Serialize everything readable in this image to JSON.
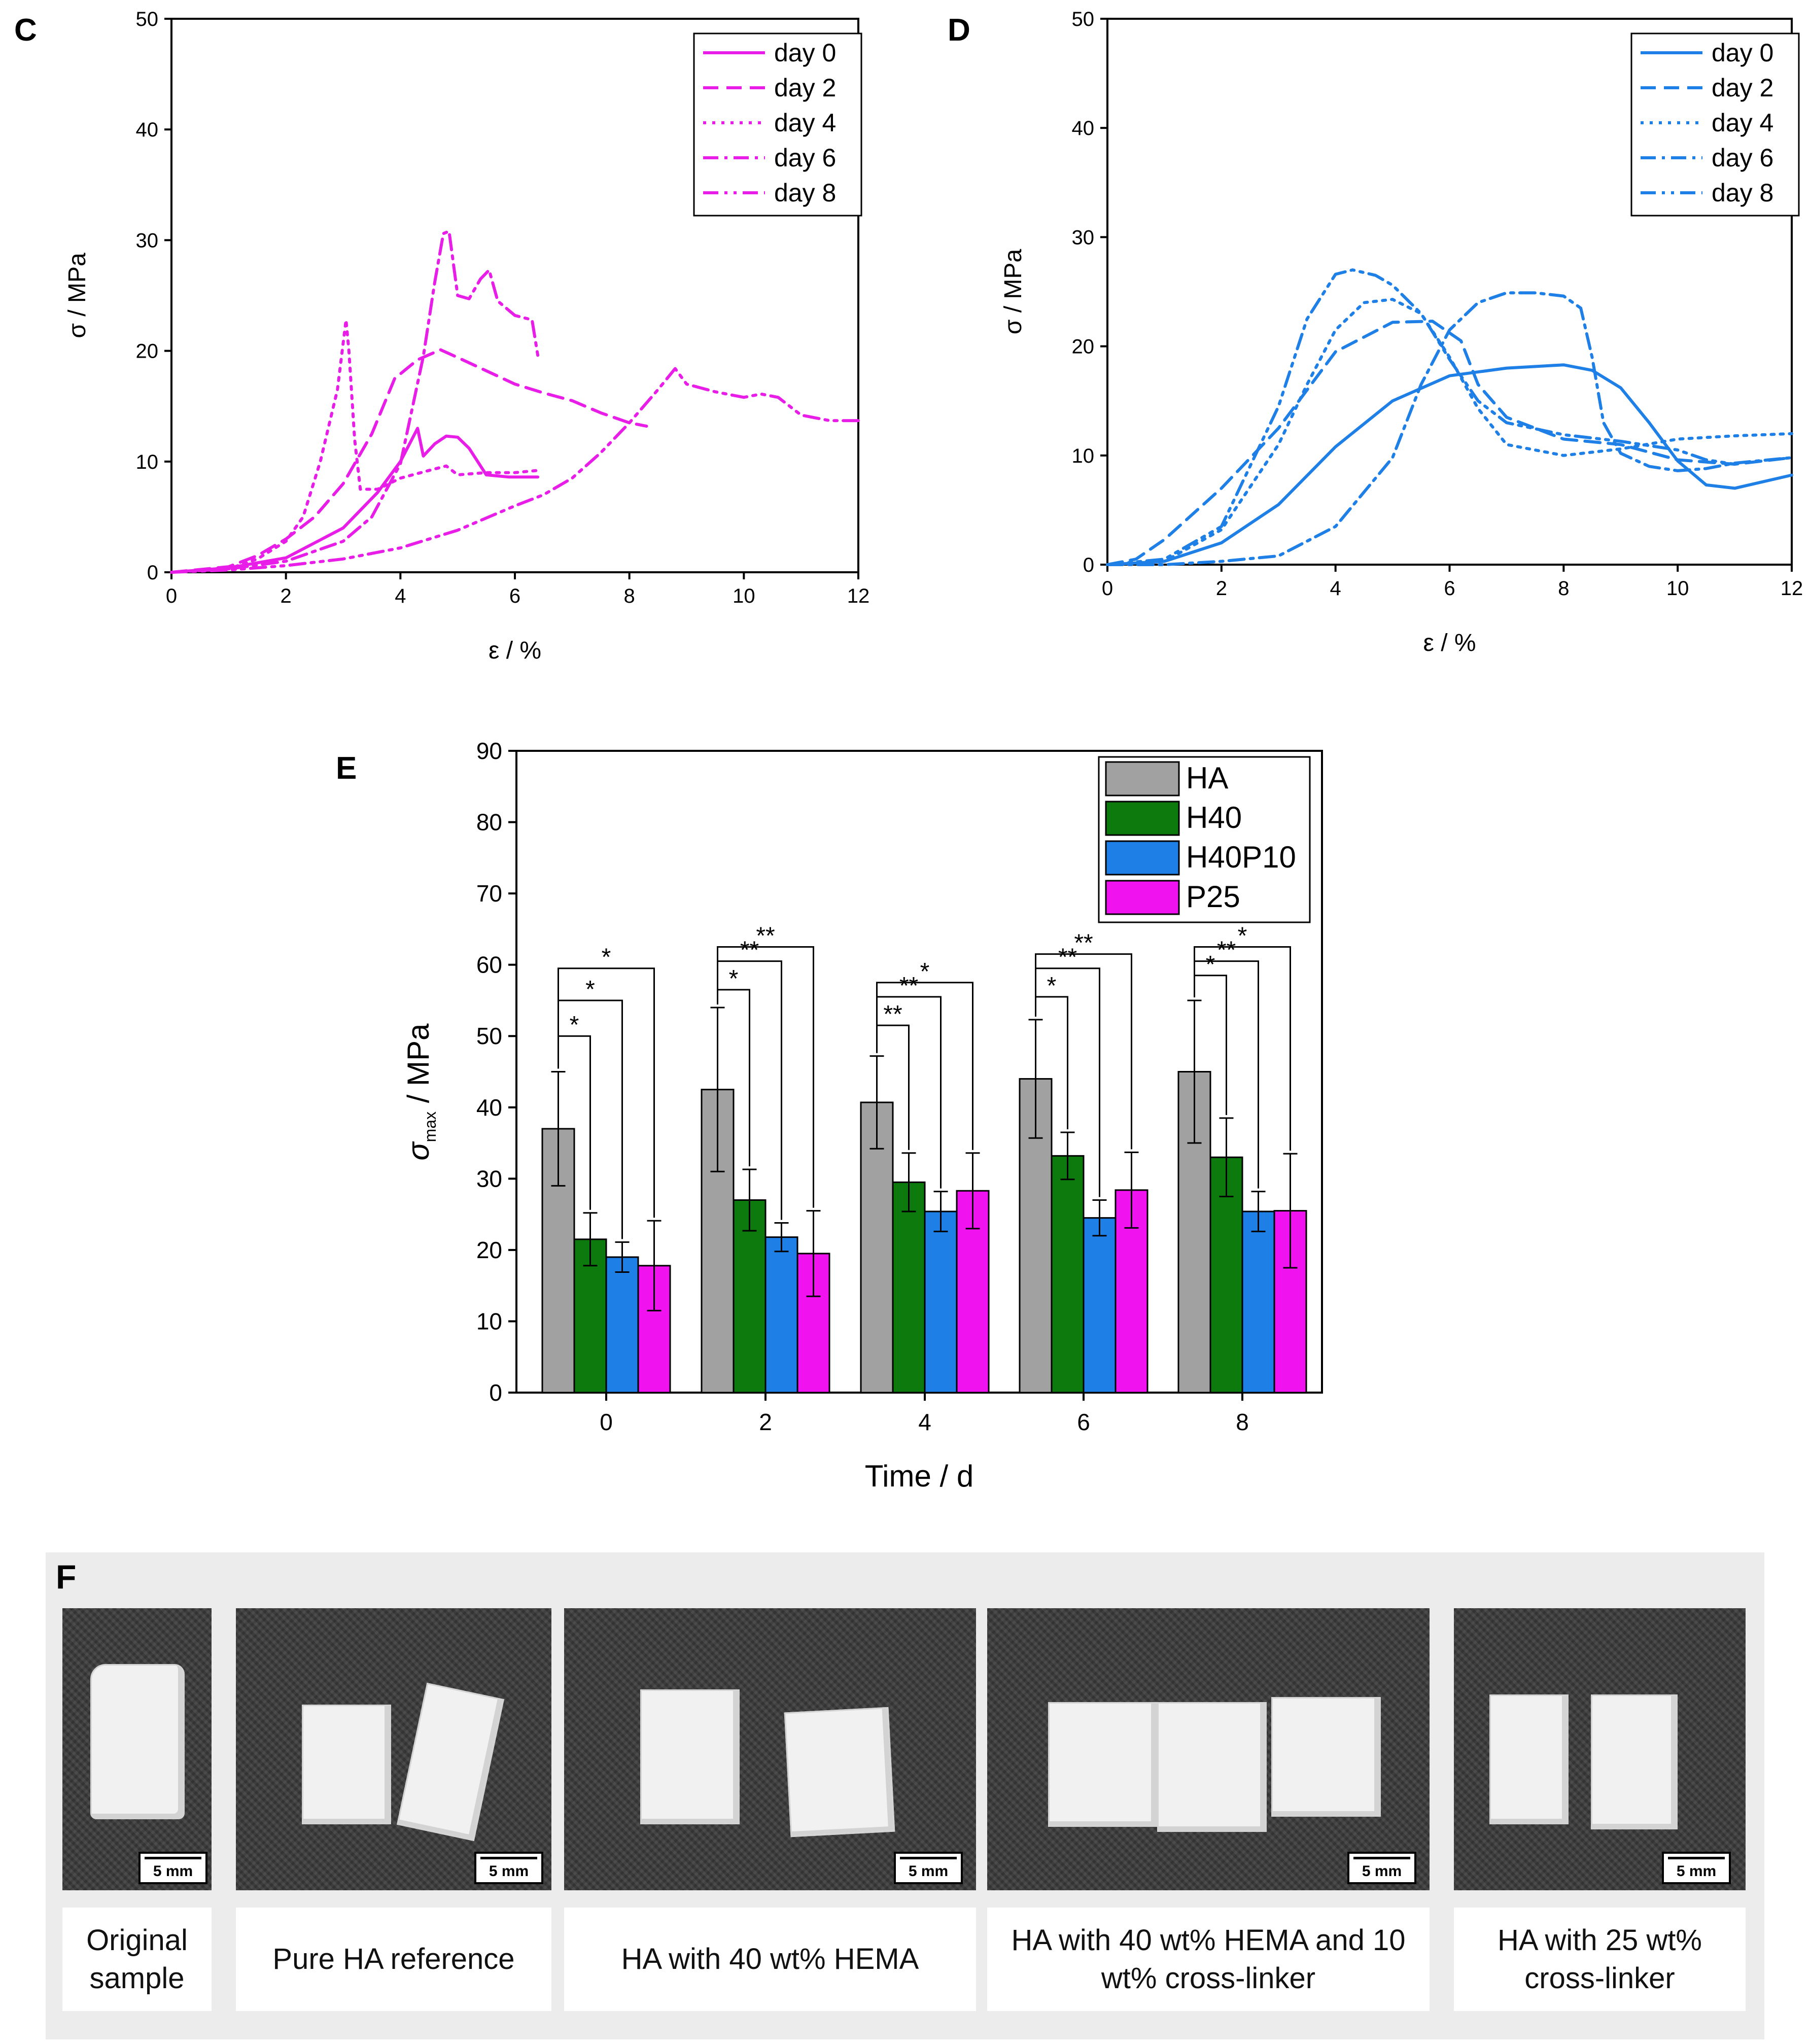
{
  "chart_data": [
    {
      "id": "C",
      "type": "line",
      "panel_label": "C",
      "xlabel": "ε / %",
      "ylabel": "σ / MPa",
      "xlim": [
        0,
        12
      ],
      "ylim": [
        0,
        50
      ],
      "xticks": [
        "0",
        "2",
        "4",
        "6",
        "8",
        "10",
        "12"
      ],
      "yticks": [
        "0",
        "10",
        "20",
        "30",
        "40",
        "50"
      ],
      "color": "#e81ee8",
      "legend": [
        "day 0",
        "day 2",
        "day 4",
        "day 6",
        "day 8"
      ],
      "series": [
        {
          "name": "day 0",
          "dash": "solid",
          "points": [
            [
              0,
              0
            ],
            [
              1,
              0.4
            ],
            [
              2,
              1.3
            ],
            [
              3,
              4
            ],
            [
              3.6,
              7.2
            ],
            [
              4,
              10
            ],
            [
              4.3,
              13
            ],
            [
              4.4,
              10.5
            ],
            [
              4.6,
              11.6
            ],
            [
              4.8,
              12.3
            ],
            [
              5,
              12.2
            ],
            [
              5.2,
              11.2
            ],
            [
              5.5,
              8.8
            ],
            [
              5.9,
              8.6
            ],
            [
              6.4,
              8.6
            ]
          ]
        },
        {
          "name": "day 2",
          "dash": "dashed",
          "points": [
            [
              0,
              0
            ],
            [
              1,
              0.5
            ],
            [
              1.5,
              1.5
            ],
            [
              2,
              3
            ],
            [
              2.5,
              5
            ],
            [
              3,
              8
            ],
            [
              3.5,
              12.5
            ],
            [
              3.9,
              17.5
            ],
            [
              4.3,
              19.2
            ],
            [
              4.7,
              20.1
            ],
            [
              5,
              19.4
            ],
            [
              5.5,
              18.2
            ],
            [
              6,
              17
            ],
            [
              6.5,
              16.2
            ],
            [
              7,
              15.5
            ],
            [
              7.5,
              14.4
            ],
            [
              8,
              13.5
            ],
            [
              8.3,
              13.2
            ]
          ]
        },
        {
          "name": "day 4",
          "dash": "dotted",
          "points": [
            [
              0,
              0
            ],
            [
              1,
              0.3
            ],
            [
              1.5,
              1.2
            ],
            [
              2,
              2.8
            ],
            [
              2.3,
              5
            ],
            [
              2.6,
              10
            ],
            [
              2.9,
              16.5
            ],
            [
              3.05,
              22.8
            ],
            [
              3.1,
              20
            ],
            [
              3.2,
              12
            ],
            [
              3.3,
              7.5
            ],
            [
              3.6,
              7.5
            ],
            [
              4,
              8.5
            ],
            [
              4.5,
              9.2
            ],
            [
              4.8,
              9.6
            ],
            [
              5,
              8.8
            ],
            [
              5.5,
              9
            ],
            [
              6,
              9
            ],
            [
              6.4,
              9.2
            ]
          ]
        },
        {
          "name": "day 6",
          "dash": "dashdot",
          "points": [
            [
              0,
              0
            ],
            [
              1,
              0.3
            ],
            [
              2,
              1
            ],
            [
              3,
              2.8
            ],
            [
              3.5,
              5
            ],
            [
              4,
              9.8
            ],
            [
              4.4,
              19.5
            ],
            [
              4.6,
              26.2
            ],
            [
              4.75,
              30.6
            ],
            [
              4.85,
              30.8
            ],
            [
              5,
              25
            ],
            [
              5.2,
              24.7
            ],
            [
              5.4,
              26.5
            ],
            [
              5.55,
              27.3
            ],
            [
              5.7,
              24.5
            ],
            [
              6,
              23.2
            ],
            [
              6.3,
              22.8
            ],
            [
              6.4,
              19.6
            ]
          ]
        },
        {
          "name": "day 8",
          "dash": "dashdotdot",
          "points": [
            [
              0,
              0
            ],
            [
              1,
              0.2
            ],
            [
              2,
              0.6
            ],
            [
              3,
              1.2
            ],
            [
              4,
              2.2
            ],
            [
              5,
              3.8
            ],
            [
              6,
              6
            ],
            [
              6.5,
              7
            ],
            [
              7,
              8.5
            ],
            [
              7.5,
              10.8
            ],
            [
              8,
              13.5
            ],
            [
              8.5,
              16.5
            ],
            [
              8.8,
              18.4
            ],
            [
              9,
              17
            ],
            [
              9.5,
              16.3
            ],
            [
              10,
              15.8
            ],
            [
              10.3,
              16.1
            ],
            [
              10.6,
              15.8
            ],
            [
              11,
              14.2
            ],
            [
              11.5,
              13.7
            ],
            [
              12,
              13.7
            ]
          ]
        }
      ]
    },
    {
      "id": "D",
      "type": "line",
      "panel_label": "D",
      "xlabel": "ε / %",
      "ylabel": "σ / MPa",
      "xlim": [
        0,
        12
      ],
      "ylim": [
        0,
        50
      ],
      "xticks": [
        "0",
        "2",
        "4",
        "6",
        "8",
        "10",
        "12"
      ],
      "yticks": [
        "0",
        "10",
        "20",
        "30",
        "40",
        "50"
      ],
      "color": "#1e7fe6",
      "legend": [
        "day 0",
        "day 2",
        "day 4",
        "day 6",
        "day 8"
      ],
      "series": [
        {
          "name": "day 0",
          "dash": "solid",
          "points": [
            [
              0,
              0
            ],
            [
              1,
              0.3
            ],
            [
              2,
              2
            ],
            [
              3,
              5.5
            ],
            [
              4,
              10.8
            ],
            [
              5,
              15
            ],
            [
              6,
              17.3
            ],
            [
              7,
              18
            ],
            [
              8,
              18.3
            ],
            [
              8.5,
              17.8
            ],
            [
              9,
              16.2
            ],
            [
              9.5,
              13
            ],
            [
              10,
              9.5
            ],
            [
              10.5,
              7.3
            ],
            [
              11,
              7
            ],
            [
              12,
              8.2
            ]
          ]
        },
        {
          "name": "day 2",
          "dash": "dashed",
          "points": [
            [
              0,
              0
            ],
            [
              0.5,
              0.5
            ],
            [
              1,
              2.3
            ],
            [
              2,
              7
            ],
            [
              3,
              12.5
            ],
            [
              4,
              19.5
            ],
            [
              5,
              22.2
            ],
            [
              5.7,
              22.3
            ],
            [
              6.2,
              20.5
            ],
            [
              6.5,
              16.5
            ],
            [
              7,
              13.5
            ],
            [
              8,
              11.5
            ],
            [
              9,
              11
            ],
            [
              10,
              9.6
            ],
            [
              11,
              9.2
            ],
            [
              12,
              9.8
            ]
          ]
        },
        {
          "name": "day 4",
          "dash": "dotted",
          "points": [
            [
              0,
              0
            ],
            [
              1,
              0.3
            ],
            [
              2,
              3.2
            ],
            [
              3,
              11
            ],
            [
              3.5,
              16.5
            ],
            [
              4,
              21.5
            ],
            [
              4.5,
              24
            ],
            [
              5,
              24.3
            ],
            [
              5.5,
              23
            ],
            [
              6,
              19
            ],
            [
              6.5,
              14.3
            ],
            [
              7,
              11
            ],
            [
              8,
              10
            ],
            [
              9,
              10.6
            ],
            [
              10,
              11.5
            ],
            [
              11,
              11.8
            ],
            [
              12,
              12
            ]
          ]
        },
        {
          "name": "day 6",
          "dash": "dashdot",
          "points": [
            [
              0,
              0
            ],
            [
              1,
              0
            ],
            [
              2,
              0.3
            ],
            [
              3,
              0.8
            ],
            [
              4,
              3.5
            ],
            [
              5,
              9.8
            ],
            [
              5.5,
              16.5
            ],
            [
              6,
              21.5
            ],
            [
              6.5,
              24
            ],
            [
              7,
              24.9
            ],
            [
              7.5,
              24.9
            ],
            [
              8,
              24.6
            ],
            [
              8.3,
              23.5
            ],
            [
              8.5,
              19
            ],
            [
              8.7,
              13
            ],
            [
              9,
              10.2
            ],
            [
              9.5,
              9
            ],
            [
              10,
              8.6
            ],
            [
              10.5,
              8.8
            ],
            [
              11,
              9.3
            ],
            [
              12,
              9.8
            ]
          ]
        },
        {
          "name": "day 8",
          "dash": "dashdotdot",
          "points": [
            [
              0,
              0
            ],
            [
              1,
              0.5
            ],
            [
              2,
              3.5
            ],
            [
              3,
              14.5
            ],
            [
              3.5,
              22.5
            ],
            [
              4,
              26.6
            ],
            [
              4.3,
              27
            ],
            [
              4.7,
              26.5
            ],
            [
              5,
              25.6
            ],
            [
              5.5,
              23
            ],
            [
              6,
              18.8
            ],
            [
              6.5,
              15
            ],
            [
              7,
              13
            ],
            [
              8,
              11.9
            ],
            [
              9,
              11.3
            ],
            [
              10,
              10.5
            ],
            [
              10.5,
              9.6
            ],
            [
              11,
              9.2
            ]
          ]
        }
      ]
    },
    {
      "id": "E",
      "type": "bar",
      "panel_label": "E",
      "xlabel": "Time / d",
      "ylabel_main": "σ",
      "ylabel_sub": "max",
      "ylabel_unit": " / MPa",
      "ylim": [
        0,
        90
      ],
      "yticks": [
        "0",
        "10",
        "20",
        "30",
        "40",
        "50",
        "60",
        "70",
        "80",
        "90"
      ],
      "categories": [
        "0",
        "2",
        "4",
        "6",
        "8"
      ],
      "series": [
        {
          "name": "HA",
          "color": "#a1a1a1",
          "values": [
            37,
            42.5,
            40.7,
            44,
            45
          ],
          "err": [
            8,
            11.5,
            6.5,
            8.3,
            10
          ]
        },
        {
          "name": "H40",
          "color": "#0d7a0d",
          "values": [
            21.5,
            27,
            29.5,
            33.2,
            33
          ],
          "err": [
            3.7,
            4.3,
            4.1,
            3.3,
            5.5
          ]
        },
        {
          "name": "H40P10",
          "color": "#1e7fe6",
          "values": [
            19,
            21.8,
            25.4,
            24.5,
            25.4
          ],
          "err": [
            2.1,
            2,
            2.8,
            2.5,
            2.8
          ]
        },
        {
          "name": "P25",
          "color": "#f013f0",
          "values": [
            17.8,
            19.5,
            28.3,
            28.4,
            25.5
          ],
          "err": [
            6.3,
            6,
            5.3,
            5.3,
            8
          ]
        }
      ],
      "significance": [
        {
          "group": 0,
          "to": 1,
          "label": "*",
          "level": 50
        },
        {
          "group": 0,
          "to": 2,
          "label": "*",
          "level": 55
        },
        {
          "group": 0,
          "to": 3,
          "label": "*",
          "level": 59.5
        },
        {
          "group": 1,
          "to": 1,
          "label": "*",
          "level": 56.5
        },
        {
          "group": 1,
          "to": 2,
          "label": "**",
          "level": 60.5
        },
        {
          "group": 1,
          "to": 3,
          "label": "**",
          "level": 62.5
        },
        {
          "group": 2,
          "to": 1,
          "label": "**",
          "level": 51.5
        },
        {
          "group": 2,
          "to": 2,
          "label": "**",
          "level": 55.5
        },
        {
          "group": 2,
          "to": 3,
          "label": "*",
          "level": 57.5
        },
        {
          "group": 3,
          "to": 1,
          "label": "*",
          "level": 55.5
        },
        {
          "group": 3,
          "to": 2,
          "label": "**",
          "level": 59.5
        },
        {
          "group": 3,
          "to": 3,
          "label": "**",
          "level": 61.5
        },
        {
          "group": 4,
          "to": 1,
          "label": "*",
          "level": 58.5
        },
        {
          "group": 4,
          "to": 2,
          "label": "**",
          "level": 60.5
        },
        {
          "group": 4,
          "to": 3,
          "label": "*",
          "level": 62.5
        }
      ]
    }
  ],
  "panel_f": {
    "label": "F",
    "scale_text": "5 mm",
    "captions": [
      "Original sample",
      "Pure HA reference",
      "HA with 40 wt% HEMA",
      "HA with 40 wt% HEMA and 10 wt% cross-linker",
      "HA with 25 wt% cross-linker"
    ]
  }
}
